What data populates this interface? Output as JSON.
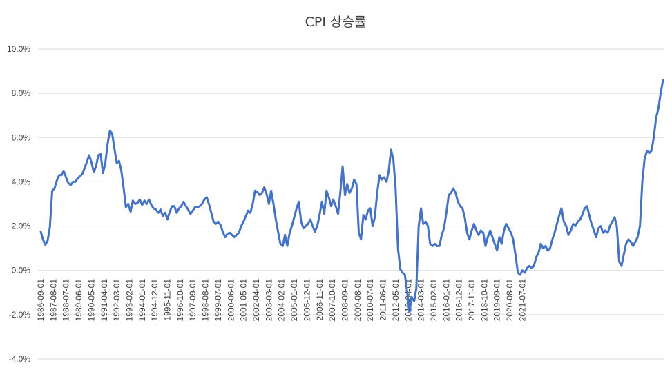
{
  "chart_data": {
    "type": "line",
    "title": "CPI 상승률",
    "xlabel": "",
    "ylabel": "",
    "ylim": [
      -4,
      10
    ],
    "y_ticks": [
      "10.0%",
      "8.0%",
      "6.0%",
      "4.0%",
      "2.0%",
      "0.0%",
      "-2.0%",
      "-4.0%"
    ],
    "x_tick_labels": [
      "1986-09-01",
      "1987-08-01",
      "1988-07-01",
      "1989-06-01",
      "1990-05-01",
      "1991-04-01",
      "1992-03-01",
      "1993-02-01",
      "1994-01-01",
      "1994-12-01",
      "1995-11-01",
      "1996-10-01",
      "1997-09-01",
      "1998-08-01",
      "1999-07-01",
      "2000-06-01",
      "2001-05-01",
      "2002-04-01",
      "2003-03-01",
      "2004-02-01",
      "2005-01-01",
      "2005-12-01",
      "2006-11-01",
      "2007-10-01",
      "2008-09-01",
      "2009-08-01",
      "2010-07-01",
      "2011-06-01",
      "2012-05-01",
      "2013-04-01",
      "2014-03-01",
      "2015-02-01",
      "2016-01-01",
      "2016-12-01",
      "2017-11-01",
      "2018-10-01",
      "2019-09-01",
      "2020-08-01",
      "2021-07-01"
    ],
    "grid": true,
    "legend": "none",
    "color": "#4472c4",
    "series": [
      {
        "values": [
          [
            1986.67,
            1.75
          ],
          [
            1986.83,
            1.4
          ],
          [
            1987.0,
            1.15
          ],
          [
            1987.17,
            1.35
          ],
          [
            1987.33,
            1.95
          ],
          [
            1987.5,
            3.6
          ],
          [
            1987.67,
            3.7
          ],
          [
            1987.83,
            4.05
          ],
          [
            1988.0,
            4.3
          ],
          [
            1988.17,
            4.3
          ],
          [
            1988.33,
            4.5
          ],
          [
            1988.5,
            4.2
          ],
          [
            1988.67,
            3.95
          ],
          [
            1988.83,
            3.85
          ],
          [
            1989.0,
            4.0
          ],
          [
            1989.17,
            4.0
          ],
          [
            1989.33,
            4.15
          ],
          [
            1989.5,
            4.25
          ],
          [
            1989.67,
            4.35
          ],
          [
            1989.83,
            4.6
          ],
          [
            1990.0,
            4.9
          ],
          [
            1990.17,
            5.2
          ],
          [
            1990.33,
            4.9
          ],
          [
            1990.5,
            4.45
          ],
          [
            1990.67,
            4.7
          ],
          [
            1990.83,
            5.2
          ],
          [
            1991.0,
            5.25
          ],
          [
            1991.17,
            4.4
          ],
          [
            1991.33,
            4.8
          ],
          [
            1991.5,
            5.7
          ],
          [
            1991.67,
            6.3
          ],
          [
            1991.83,
            6.2
          ],
          [
            1992.0,
            5.5
          ],
          [
            1992.17,
            4.85
          ],
          [
            1992.33,
            4.95
          ],
          [
            1992.5,
            4.5
          ],
          [
            1992.67,
            3.7
          ],
          [
            1992.83,
            2.85
          ],
          [
            1993.0,
            3.0
          ],
          [
            1993.17,
            2.65
          ],
          [
            1993.33,
            3.15
          ],
          [
            1993.5,
            3.0
          ],
          [
            1993.67,
            3.05
          ],
          [
            1993.83,
            3.2
          ],
          [
            1994.0,
            2.95
          ],
          [
            1994.17,
            3.15
          ],
          [
            1994.33,
            3.0
          ],
          [
            1994.5,
            3.2
          ],
          [
            1994.67,
            2.95
          ],
          [
            1994.83,
            2.8
          ],
          [
            1995.0,
            2.75
          ],
          [
            1995.17,
            2.6
          ],
          [
            1995.33,
            2.75
          ],
          [
            1995.5,
            2.45
          ],
          [
            1995.67,
            2.6
          ],
          [
            1995.83,
            2.3
          ],
          [
            1996.0,
            2.65
          ],
          [
            1996.17,
            2.9
          ],
          [
            1996.33,
            2.9
          ],
          [
            1996.5,
            2.6
          ],
          [
            1996.67,
            2.8
          ],
          [
            1996.83,
            2.9
          ],
          [
            1997.0,
            3.1
          ],
          [
            1997.17,
            2.9
          ],
          [
            1997.33,
            2.75
          ],
          [
            1997.5,
            2.55
          ],
          [
            1997.67,
            2.7
          ],
          [
            1997.83,
            2.85
          ],
          [
            1998.0,
            2.85
          ],
          [
            1998.17,
            2.9
          ],
          [
            1998.33,
            3.0
          ],
          [
            1998.5,
            3.2
          ],
          [
            1998.67,
            3.3
          ],
          [
            1998.83,
            3.0
          ],
          [
            1999.0,
            2.6
          ],
          [
            1999.17,
            2.2
          ],
          [
            1999.33,
            2.1
          ],
          [
            1999.5,
            2.2
          ],
          [
            1999.67,
            2.05
          ],
          [
            1999.83,
            1.75
          ],
          [
            2000.0,
            1.5
          ],
          [
            2000.17,
            1.65
          ],
          [
            2000.33,
            1.7
          ],
          [
            2000.5,
            1.6
          ],
          [
            2000.67,
            1.5
          ],
          [
            2000.83,
            1.6
          ],
          [
            2001.0,
            1.7
          ],
          [
            2001.17,
            2.0
          ],
          [
            2001.33,
            2.2
          ],
          [
            2001.5,
            2.45
          ],
          [
            2001.67,
            2.7
          ],
          [
            2001.83,
            2.6
          ],
          [
            2002.0,
            3.0
          ],
          [
            2002.17,
            3.6
          ],
          [
            2002.33,
            3.55
          ],
          [
            2002.5,
            3.4
          ],
          [
            2002.67,
            3.5
          ],
          [
            2002.83,
            3.75
          ],
          [
            2003.0,
            3.45
          ],
          [
            2003.17,
            3.0
          ],
          [
            2003.33,
            3.6
          ],
          [
            2003.5,
            3.0
          ],
          [
            2003.67,
            2.3
          ],
          [
            2003.83,
            1.75
          ],
          [
            2004.0,
            1.2
          ],
          [
            2004.17,
            1.1
          ],
          [
            2004.33,
            1.6
          ],
          [
            2004.5,
            1.1
          ],
          [
            2004.67,
            1.7
          ],
          [
            2004.83,
            2.0
          ],
          [
            2005.0,
            2.4
          ],
          [
            2005.17,
            2.8
          ],
          [
            2005.33,
            3.1
          ],
          [
            2005.5,
            2.2
          ],
          [
            2005.67,
            1.9
          ],
          [
            2005.83,
            2.0
          ],
          [
            2006.0,
            2.1
          ],
          [
            2006.17,
            2.3
          ],
          [
            2006.33,
            2.0
          ],
          [
            2006.5,
            1.75
          ],
          [
            2006.67,
            2.0
          ],
          [
            2006.83,
            2.5
          ],
          [
            2007.0,
            3.1
          ],
          [
            2007.17,
            2.55
          ],
          [
            2007.33,
            3.6
          ],
          [
            2007.5,
            3.3
          ],
          [
            2007.67,
            2.9
          ],
          [
            2007.83,
            3.2
          ],
          [
            2008.0,
            2.9
          ],
          [
            2008.17,
            2.55
          ],
          [
            2008.33,
            3.5
          ],
          [
            2008.5,
            4.7
          ],
          [
            2008.67,
            3.4
          ],
          [
            2008.83,
            3.9
          ],
          [
            2009.0,
            3.5
          ],
          [
            2009.17,
            3.7
          ],
          [
            2009.33,
            4.1
          ],
          [
            2009.5,
            3.9
          ],
          [
            2009.67,
            1.7
          ],
          [
            2009.83,
            1.4
          ],
          [
            2010.0,
            2.5
          ],
          [
            2010.17,
            2.3
          ],
          [
            2010.33,
            2.7
          ],
          [
            2010.5,
            2.8
          ],
          [
            2010.67,
            2.0
          ],
          [
            2010.83,
            2.4
          ],
          [
            2011.0,
            3.5
          ],
          [
            2011.17,
            4.3
          ],
          [
            2011.33,
            4.1
          ],
          [
            2011.5,
            4.2
          ],
          [
            2011.67,
            4.0
          ],
          [
            2011.83,
            4.5
          ],
          [
            2012.0,
            5.45
          ],
          [
            2012.17,
            5.0
          ],
          [
            2012.33,
            3.7
          ],
          [
            2012.5,
            1.0
          ],
          [
            2012.67,
            0.05
          ],
          [
            2012.83,
            -0.1
          ],
          [
            2013.0,
            -0.2
          ],
          [
            2013.17,
            -1.0
          ],
          [
            2013.33,
            -1.9
          ],
          [
            2013.5,
            -1.2
          ],
          [
            2013.67,
            -1.4
          ],
          [
            2013.83,
            -0.8
          ],
          [
            2014.0,
            2.0
          ],
          [
            2014.17,
            2.8
          ],
          [
            2014.33,
            2.1
          ],
          [
            2014.5,
            2.2
          ],
          [
            2014.67,
            2.0
          ],
          [
            2014.83,
            1.2
          ],
          [
            2015.0,
            1.1
          ],
          [
            2015.17,
            1.2
          ],
          [
            2015.33,
            1.1
          ],
          [
            2015.5,
            1.1
          ],
          [
            2015.67,
            1.6
          ],
          [
            2015.83,
            1.9
          ],
          [
            2016.0,
            2.6
          ],
          [
            2016.17,
            3.4
          ],
          [
            2016.33,
            3.5
          ],
          [
            2016.5,
            3.7
          ],
          [
            2016.67,
            3.5
          ],
          [
            2016.83,
            3.1
          ],
          [
            2017.0,
            2.9
          ],
          [
            2017.17,
            2.8
          ],
          [
            2017.33,
            2.4
          ],
          [
            2017.5,
            1.7
          ],
          [
            2017.67,
            1.4
          ],
          [
            2017.83,
            1.8
          ],
          [
            2018.0,
            2.1
          ],
          [
            2018.17,
            1.8
          ],
          [
            2018.33,
            1.6
          ],
          [
            2018.5,
            1.8
          ],
          [
            2018.67,
            1.7
          ],
          [
            2018.83,
            1.1
          ],
          [
            2019.0,
            1.5
          ],
          [
            2019.17,
            1.8
          ],
          [
            2019.33,
            1.5
          ],
          [
            2019.5,
            1.2
          ],
          [
            2019.67,
            0.9
          ],
          [
            2019.83,
            1.5
          ],
          [
            2020.0,
            1.2
          ],
          [
            2020.17,
            1.8
          ],
          [
            2020.33,
            2.1
          ],
          [
            2020.5,
            1.9
          ],
          [
            2020.67,
            1.7
          ],
          [
            2020.83,
            1.4
          ],
          [
            2021.0,
            0.7
          ],
          [
            2021.17,
            -0.1
          ],
          [
            2021.33,
            -0.2
          ],
          [
            2021.5,
            0.0
          ],
          [
            2021.67,
            -0.1
          ],
          [
            2021.83,
            0.1
          ],
          [
            2022.0,
            0.2
          ],
          [
            2022.17,
            0.1
          ],
          [
            2022.33,
            0.2
          ],
          [
            2022.5,
            0.6
          ],
          [
            2022.67,
            0.8
          ],
          [
            2022.83,
            1.2
          ],
          [
            2023.0,
            1.0
          ],
          [
            2023.17,
            1.1
          ],
          [
            2023.33,
            0.9
          ],
          [
            2023.5,
            1.0
          ],
          [
            2023.67,
            1.4
          ],
          [
            2023.83,
            1.7
          ],
          [
            2024.0,
            2.1
          ],
          [
            2024.17,
            2.5
          ],
          [
            2024.33,
            2.8
          ],
          [
            2024.5,
            2.2
          ],
          [
            2024.67,
            2.0
          ],
          [
            2024.83,
            1.6
          ],
          [
            2025.0,
            1.8
          ],
          [
            2025.17,
            2.1
          ],
          [
            2025.33,
            2.0
          ],
          [
            2025.5,
            2.2
          ],
          [
            2025.67,
            2.3
          ],
          [
            2025.83,
            2.5
          ],
          [
            2026.0,
            2.8
          ],
          [
            2026.17,
            2.9
          ],
          [
            2026.33,
            2.5
          ],
          [
            2026.5,
            2.1
          ],
          [
            2026.67,
            1.8
          ],
          [
            2026.83,
            1.5
          ],
          [
            2027.0,
            1.9
          ],
          [
            2027.17,
            2.0
          ],
          [
            2027.33,
            1.7
          ],
          [
            2027.5,
            1.8
          ],
          [
            2027.67,
            1.7
          ],
          [
            2027.83,
            2.0
          ],
          [
            2028.0,
            2.2
          ],
          [
            2028.17,
            2.4
          ],
          [
            2028.33,
            2.0
          ],
          [
            2028.5,
            0.4
          ],
          [
            2028.67,
            0.2
          ],
          [
            2028.83,
            0.7
          ],
          [
            2029.0,
            1.2
          ],
          [
            2029.17,
            1.4
          ],
          [
            2029.33,
            1.3
          ],
          [
            2029.5,
            1.1
          ],
          [
            2029.67,
            1.3
          ],
          [
            2029.83,
            1.5
          ],
          [
            2030.0,
            2.0
          ],
          [
            2030.17,
            4.0
          ],
          [
            2030.33,
            5.0
          ],
          [
            2030.5,
            5.4
          ],
          [
            2030.67,
            5.3
          ],
          [
            2030.83,
            5.4
          ],
          [
            2031.0,
            6.0
          ],
          [
            2031.17,
            6.9
          ],
          [
            2031.33,
            7.3
          ],
          [
            2031.5,
            8.0
          ],
          [
            2031.67,
            8.6
          ]
        ]
      }
    ]
  }
}
